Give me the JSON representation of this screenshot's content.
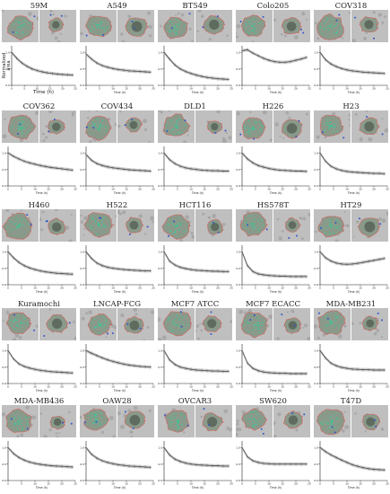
{
  "figure": {
    "colors": {
      "background": "#ffffff",
      "micrograph_bg": "#bfbfbf",
      "spheroid_fill": "#8a9a8a",
      "spheroid_dot": "#33cc99",
      "spheroid_outline": "#e05050",
      "stray_cell": "#3355cc",
      "curve": "#555555",
      "axis": "#222222"
    },
    "icons": [
      "spheroid-micrograph-before",
      "spheroid-micrograph-after"
    ]
  },
  "chart_data": [
    {
      "type": "line",
      "name_label": "59M",
      "ylabel": "Normalized area",
      "xlabel": "Time (h)",
      "xlim": [
        0,
        25
      ],
      "ylim": [
        0,
        1.2
      ],
      "x": [
        0,
        2,
        4,
        6,
        8,
        10,
        12,
        14,
        16,
        18,
        20,
        22,
        24
      ],
      "y": [
        1.0,
        0.82,
        0.68,
        0.58,
        0.5,
        0.45,
        0.41,
        0.38,
        0.36,
        0.34,
        0.33,
        0.32,
        0.31
      ]
    },
    {
      "type": "line",
      "name_label": "A549",
      "xlabel": "Time (h)",
      "xlim": [
        0,
        25
      ],
      "ylim": [
        0,
        1.2
      ],
      "x": [
        0,
        2,
        4,
        6,
        8,
        10,
        12,
        14,
        16,
        18,
        20,
        22,
        24
      ],
      "y": [
        0.95,
        0.8,
        0.68,
        0.6,
        0.55,
        0.51,
        0.48,
        0.46,
        0.44,
        0.43,
        0.42,
        0.41,
        0.4
      ]
    },
    {
      "type": "line",
      "name_label": "BT549",
      "xlabel": "Time (h)",
      "xlim": [
        0,
        25
      ],
      "ylim": [
        0,
        1.2
      ],
      "x": [
        0,
        2,
        4,
        6,
        8,
        10,
        12,
        14,
        16,
        18,
        20,
        22,
        24
      ],
      "y": [
        1.0,
        0.8,
        0.62,
        0.5,
        0.42,
        0.36,
        0.31,
        0.27,
        0.24,
        0.22,
        0.2,
        0.19,
        0.18
      ]
    },
    {
      "type": "line",
      "name_label": "Colo205",
      "xlabel": "Time (h)",
      "xlim": [
        0,
        25
      ],
      "ylim": [
        0,
        1.2
      ],
      "x": [
        0,
        2,
        4,
        6,
        8,
        10,
        12,
        14,
        16,
        18,
        20,
        22,
        24
      ],
      "y": [
        1.05,
        1.08,
        0.98,
        0.9,
        0.82,
        0.76,
        0.72,
        0.7,
        0.7,
        0.72,
        0.76,
        0.8,
        0.85
      ]
    },
    {
      "type": "line",
      "name_label": "COV318",
      "xlabel": "Time (h)",
      "xlim": [
        0,
        25
      ],
      "ylim": [
        0,
        1.2
      ],
      "x": [
        0,
        2,
        4,
        6,
        8,
        10,
        12,
        14,
        16,
        18,
        20,
        22,
        24
      ],
      "y": [
        1.0,
        0.78,
        0.65,
        0.57,
        0.51,
        0.47,
        0.44,
        0.42,
        0.4,
        0.39,
        0.38,
        0.37,
        0.36
      ]
    },
    {
      "type": "line",
      "name_label": "COV362",
      "xlabel": "Time (h)",
      "xlim": [
        0,
        25
      ],
      "ylim": [
        0,
        1.2
      ],
      "x": [
        0,
        2,
        4,
        6,
        8,
        10,
        12,
        14,
        16,
        18,
        20,
        22,
        24
      ],
      "y": [
        1.0,
        0.9,
        0.82,
        0.75,
        0.7,
        0.66,
        0.62,
        0.59,
        0.56,
        0.54,
        0.52,
        0.5,
        0.48
      ]
    },
    {
      "type": "line",
      "name_label": "COV434",
      "xlabel": "Time (h)",
      "xlim": [
        0,
        25
      ],
      "ylim": [
        0,
        1.2
      ],
      "x": [
        0,
        2,
        4,
        6,
        8,
        10,
        12,
        14,
        16,
        18,
        20,
        22,
        24
      ],
      "y": [
        0.95,
        0.78,
        0.68,
        0.62,
        0.58,
        0.55,
        0.53,
        0.51,
        0.49,
        0.48,
        0.47,
        0.46,
        0.45
      ]
    },
    {
      "type": "line",
      "name_label": "DLD1",
      "xlabel": "Time (h)",
      "xlim": [
        0,
        25
      ],
      "ylim": [
        0,
        1.2
      ],
      "x": [
        0,
        2,
        4,
        6,
        8,
        10,
        12,
        14,
        16,
        18,
        20,
        22,
        24
      ],
      "y": [
        1.0,
        0.8,
        0.68,
        0.6,
        0.55,
        0.52,
        0.5,
        0.48,
        0.47,
        0.46,
        0.46,
        0.45,
        0.45
      ]
    },
    {
      "type": "line",
      "name_label": "H226",
      "xlabel": "Time (h)",
      "xlim": [
        0,
        25
      ],
      "ylim": [
        0,
        1.2
      ],
      "x": [
        0,
        2,
        4,
        6,
        8,
        10,
        12,
        14,
        16,
        18,
        20,
        22,
        24
      ],
      "y": [
        1.0,
        0.82,
        0.7,
        0.62,
        0.57,
        0.53,
        0.5,
        0.48,
        0.47,
        0.46,
        0.45,
        0.45,
        0.44
      ]
    },
    {
      "type": "line",
      "name_label": "H23",
      "xlabel": "Time (h)",
      "xlim": [
        0,
        25
      ],
      "ylim": [
        0,
        1.2
      ],
      "x": [
        0,
        2,
        4,
        6,
        8,
        10,
        12,
        14,
        16,
        18,
        20,
        22,
        24
      ],
      "y": [
        1.0,
        0.75,
        0.6,
        0.52,
        0.47,
        0.44,
        0.42,
        0.41,
        0.4,
        0.39,
        0.38,
        0.38,
        0.37
      ]
    },
    {
      "type": "line",
      "name_label": "H460",
      "xlabel": "Time (h)",
      "xlim": [
        0,
        25
      ],
      "ylim": [
        0,
        1.2
      ],
      "x": [
        0,
        2,
        4,
        6,
        8,
        10,
        12,
        14,
        16,
        18,
        20,
        22,
        24
      ],
      "y": [
        1.0,
        0.82,
        0.68,
        0.58,
        0.51,
        0.46,
        0.42,
        0.39,
        0.37,
        0.35,
        0.34,
        0.33,
        0.32
      ]
    },
    {
      "type": "line",
      "name_label": "H522",
      "xlabel": "Time (h)",
      "xlim": [
        0,
        25
      ],
      "ylim": [
        0,
        1.2
      ],
      "x": [
        0,
        2,
        4,
        6,
        8,
        10,
        12,
        14,
        16,
        18,
        20,
        22,
        24
      ],
      "y": [
        1.0,
        0.8,
        0.66,
        0.58,
        0.53,
        0.5,
        0.48,
        0.46,
        0.45,
        0.44,
        0.43,
        0.42,
        0.42
      ]
    },
    {
      "type": "line",
      "name_label": "HCT116",
      "xlabel": "Time (h)",
      "xlim": [
        0,
        25
      ],
      "ylim": [
        0,
        1.2
      ],
      "x": [
        0,
        2,
        4,
        6,
        8,
        10,
        12,
        14,
        16,
        18,
        20,
        22,
        24
      ],
      "y": [
        1.0,
        0.72,
        0.6,
        0.53,
        0.49,
        0.46,
        0.44,
        0.43,
        0.42,
        0.41,
        0.41,
        0.4,
        0.4
      ]
    },
    {
      "type": "line",
      "name_label": "HS578T",
      "xlabel": "Time (h)",
      "xlim": [
        0,
        25
      ],
      "ylim": [
        0,
        1.2
      ],
      "x": [
        0,
        2,
        4,
        6,
        8,
        10,
        12,
        14,
        16,
        18,
        20,
        22,
        24
      ],
      "y": [
        1.0,
        0.58,
        0.4,
        0.33,
        0.3,
        0.28,
        0.27,
        0.26,
        0.26,
        0.25,
        0.25,
        0.25,
        0.25
      ]
    },
    {
      "type": "line",
      "name_label": "HT29",
      "xlabel": "Time (h)",
      "xlim": [
        0,
        25
      ],
      "ylim": [
        0,
        1.2
      ],
      "x": [
        0,
        2,
        4,
        6,
        8,
        10,
        12,
        14,
        16,
        18,
        20,
        22,
        24
      ],
      "y": [
        1.0,
        0.82,
        0.72,
        0.66,
        0.63,
        0.62,
        0.63,
        0.65,
        0.68,
        0.71,
        0.74,
        0.77,
        0.8
      ]
    },
    {
      "type": "line",
      "name_label": "Kuramochi",
      "xlabel": "Time (h)",
      "xlim": [
        0,
        25
      ],
      "ylim": [
        0,
        1.2
      ],
      "x": [
        0,
        2,
        4,
        6,
        8,
        10,
        12,
        14,
        16,
        18,
        20,
        22,
        24
      ],
      "y": [
        1.0,
        0.75,
        0.6,
        0.52,
        0.47,
        0.43,
        0.4,
        0.38,
        0.36,
        0.35,
        0.34,
        0.33,
        0.32
      ]
    },
    {
      "type": "line",
      "name_label": "LNCAP-FCG",
      "xlabel": "Time (h)",
      "xlim": [
        0,
        25
      ],
      "ylim": [
        0,
        1.2
      ],
      "x": [
        0,
        2,
        4,
        6,
        8,
        10,
        12,
        14,
        16,
        18,
        20,
        22,
        24
      ],
      "y": [
        1.0,
        0.92,
        0.85,
        0.78,
        0.72,
        0.67,
        0.63,
        0.59,
        0.56,
        0.54,
        0.52,
        0.51,
        0.5
      ]
    },
    {
      "type": "line",
      "name_label": "MCF7 ATCC",
      "xlabel": "Time (h)",
      "xlim": [
        0,
        25
      ],
      "ylim": [
        0,
        1.2
      ],
      "x": [
        0,
        2,
        4,
        6,
        8,
        10,
        12,
        14,
        16,
        18,
        20,
        22,
        24
      ],
      "y": [
        1.0,
        0.72,
        0.58,
        0.5,
        0.46,
        0.43,
        0.41,
        0.4,
        0.39,
        0.38,
        0.38,
        0.37,
        0.37
      ]
    },
    {
      "type": "line",
      "name_label": "MCF7 ECACC",
      "xlabel": "Time (h)",
      "xlim": [
        0,
        25
      ],
      "ylim": [
        0,
        1.2
      ],
      "x": [
        0,
        2,
        4,
        6,
        8,
        10,
        12,
        14,
        16,
        18,
        20,
        22,
        24
      ],
      "y": [
        1.0,
        0.62,
        0.46,
        0.39,
        0.35,
        0.33,
        0.32,
        0.31,
        0.31,
        0.3,
        0.3,
        0.3,
        0.3
      ]
    },
    {
      "type": "line",
      "name_label": "MDA-MB231",
      "xlabel": "Time (h)",
      "xlim": [
        0,
        25
      ],
      "ylim": [
        0,
        1.2
      ],
      "x": [
        0,
        2,
        4,
        6,
        8,
        10,
        12,
        14,
        16,
        18,
        20,
        22,
        24
      ],
      "y": [
        1.0,
        0.78,
        0.62,
        0.54,
        0.49,
        0.46,
        0.44,
        0.43,
        0.42,
        0.42,
        0.41,
        0.41,
        0.41
      ]
    },
    {
      "type": "line",
      "name_label": "MDA-MB436",
      "xlabel": "Time (h)",
      "xlim": [
        0,
        25
      ],
      "ylim": [
        0,
        1.2
      ],
      "x": [
        0,
        2,
        4,
        6,
        8,
        10,
        12,
        14,
        16,
        18,
        20,
        22,
        24
      ],
      "y": [
        1.0,
        0.82,
        0.7,
        0.62,
        0.56,
        0.52,
        0.49,
        0.47,
        0.45,
        0.44,
        0.43,
        0.42,
        0.41
      ]
    },
    {
      "type": "line",
      "name_label": "OAW28",
      "xlabel": "Time (h)",
      "xlim": [
        0,
        25
      ],
      "ylim": [
        0,
        1.2
      ],
      "x": [
        0,
        2,
        4,
        6,
        8,
        10,
        12,
        14,
        16,
        18,
        20,
        22,
        24
      ],
      "y": [
        1.0,
        0.8,
        0.68,
        0.6,
        0.55,
        0.51,
        0.48,
        0.46,
        0.44,
        0.43,
        0.42,
        0.41,
        0.4
      ]
    },
    {
      "type": "line",
      "name_label": "OVCAR3",
      "xlabel": "Time (h)",
      "xlim": [
        0,
        25
      ],
      "ylim": [
        0,
        1.2
      ],
      "x": [
        0,
        2,
        4,
        6,
        8,
        10,
        12,
        14,
        16,
        18,
        20,
        22,
        24
      ],
      "y": [
        1.0,
        0.78,
        0.65,
        0.58,
        0.53,
        0.5,
        0.48,
        0.47,
        0.46,
        0.45,
        0.45,
        0.44,
        0.44
      ]
    },
    {
      "type": "line",
      "name_label": "SW620",
      "xlabel": "Time (h)",
      "xlim": [
        0,
        25
      ],
      "ylim": [
        0,
        1.2
      ],
      "x": [
        0,
        2,
        4,
        6,
        8,
        10,
        12,
        14,
        16,
        18,
        20,
        22,
        24
      ],
      "y": [
        1.0,
        0.72,
        0.6,
        0.55,
        0.52,
        0.51,
        0.5,
        0.5,
        0.5,
        0.5,
        0.5,
        0.5,
        0.5
      ]
    },
    {
      "type": "line",
      "name_label": "T47D",
      "xlabel": "Time (h)",
      "xlim": [
        0,
        25
      ],
      "ylim": [
        0,
        1.2
      ],
      "x": [
        0,
        2,
        4,
        6,
        8,
        10,
        12,
        14,
        16,
        18,
        20,
        22,
        24
      ],
      "y": [
        1.0,
        0.88,
        0.78,
        0.7,
        0.62,
        0.55,
        0.48,
        0.43,
        0.39,
        0.36,
        0.34,
        0.33,
        0.32
      ]
    }
  ]
}
